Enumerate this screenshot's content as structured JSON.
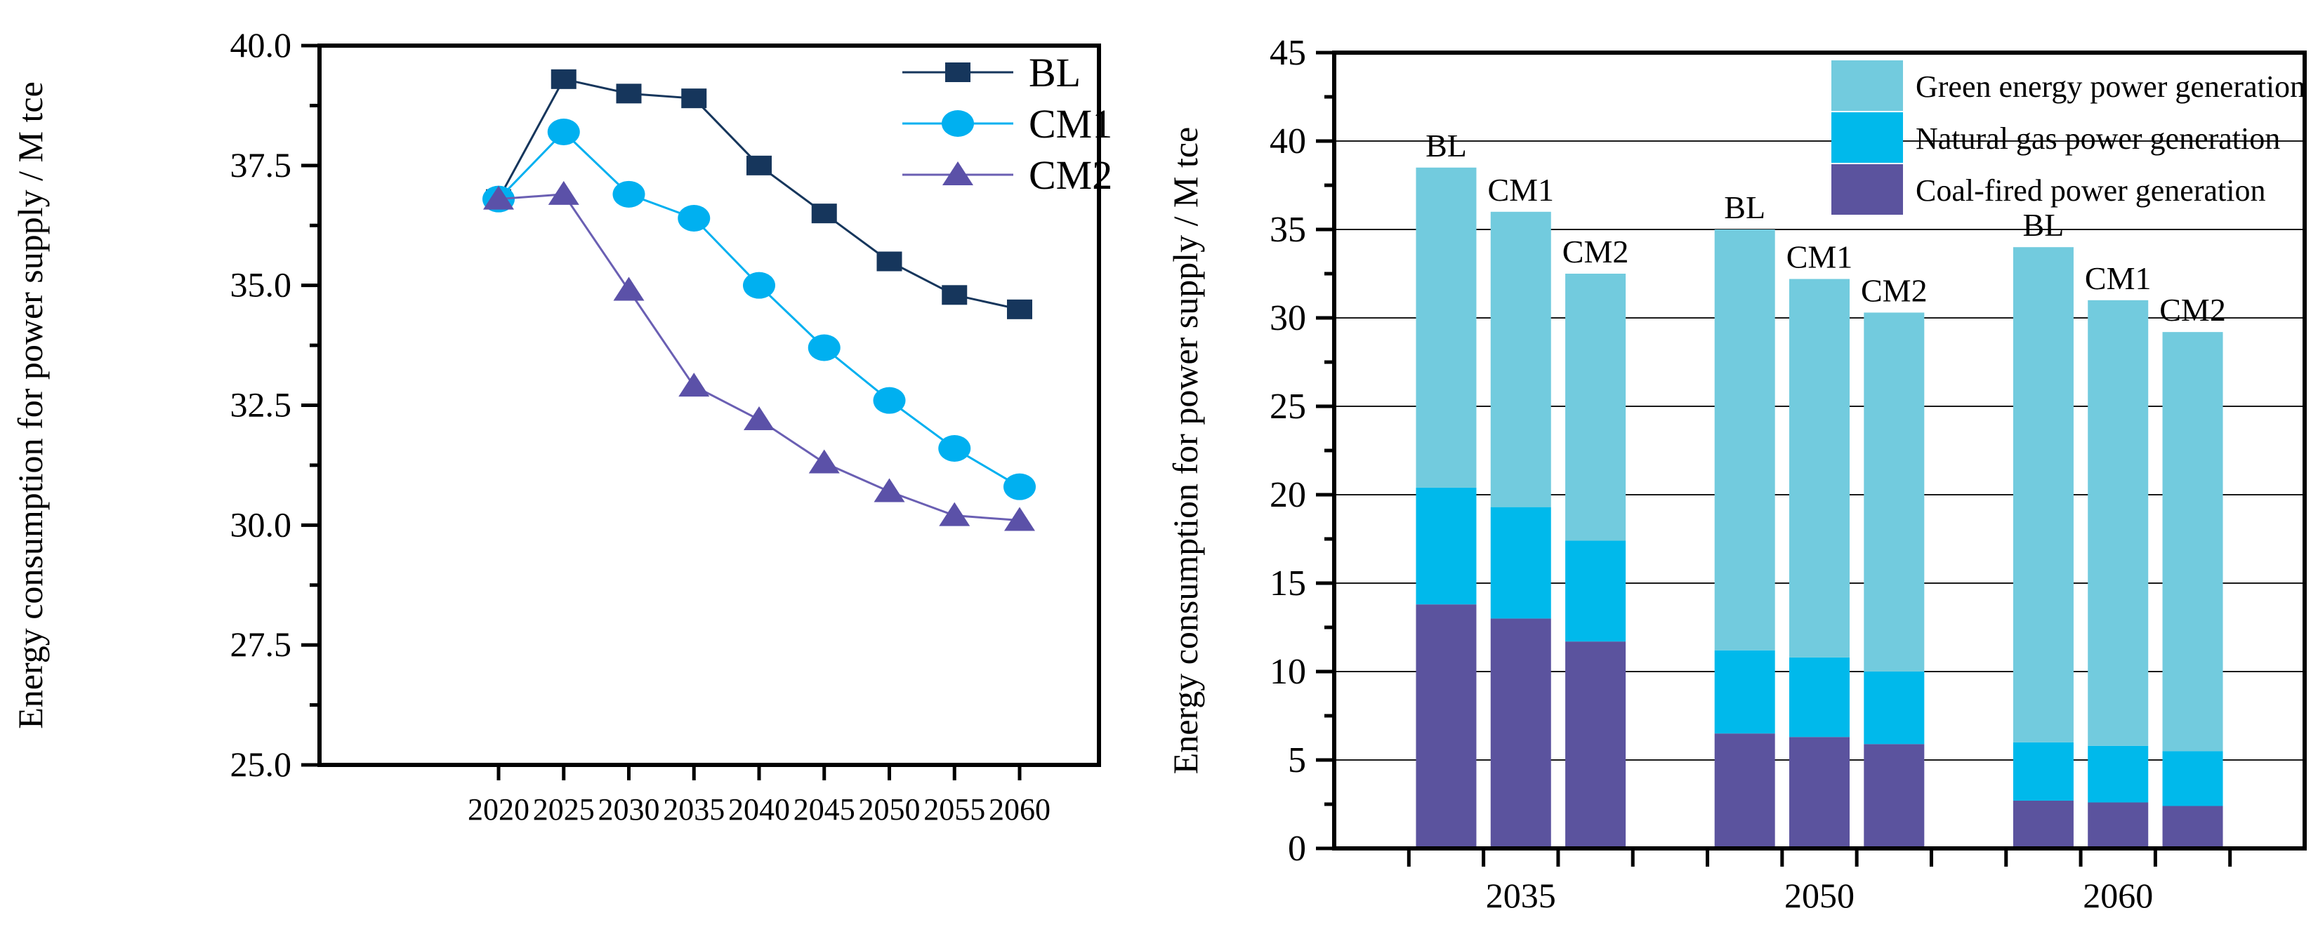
{
  "figure": {
    "background": "#ffffff",
    "axis_color": "#000000",
    "left_chart": {
      "ylabel": "Energy consumption for power supply / M tce",
      "ytick_labels": [
        "25.0",
        "27.5",
        "30.0",
        "32.5",
        "35.0",
        "37.5",
        "40.0"
      ],
      "xtick_labels": [
        "2020",
        "2025",
        "2030",
        "2035",
        "2040",
        "2045",
        "2050",
        "2055",
        "2060"
      ]
    },
    "right_chart": {
      "ylabel": "Energy consumption for power supply / M tce",
      "ytick_labels": [
        "0",
        "5",
        "10",
        "15",
        "20",
        "25",
        "30",
        "35",
        "40",
        "45"
      ],
      "xtick_labels": [
        "2035",
        "2050",
        "2060"
      ]
    }
  },
  "chart_data": [
    {
      "type": "line",
      "title": "",
      "xlabel": "",
      "ylabel": "Energy consumption for power supply / M tce",
      "x": [
        2020,
        2025,
        2030,
        2035,
        2040,
        2045,
        2050,
        2055,
        2060
      ],
      "ylim": [
        25.0,
        40.0
      ],
      "ytick_step": 2.5,
      "yminor_step": 1.25,
      "grid": false,
      "legend_position": "top-right",
      "series": [
        {
          "name": "BL",
          "marker": "square",
          "color": "#16365c",
          "line_color": "#16365c",
          "values": [
            36.8,
            39.3,
            39.0,
            38.9,
            37.5,
            36.5,
            35.5,
            34.8,
            34.5
          ]
        },
        {
          "name": "CM1",
          "marker": "circle",
          "color": "#00b0f0",
          "line_color": "#00b0f0",
          "values": [
            36.8,
            38.2,
            36.9,
            36.4,
            35.0,
            33.7,
            32.6,
            31.6,
            30.8
          ]
        },
        {
          "name": "CM2",
          "marker": "triangle",
          "color": "#5b51a8",
          "line_color": "#6a5fb3",
          "values": [
            36.8,
            36.9,
            34.9,
            32.9,
            32.2,
            31.3,
            30.7,
            30.2,
            30.1
          ]
        }
      ]
    },
    {
      "type": "bar",
      "stacked": true,
      "title": "",
      "xlabel": "",
      "ylabel": "Energy consumption for power supply / M tce",
      "groups": [
        "2035",
        "2050",
        "2060"
      ],
      "bars_per_group": [
        "BL",
        "CM1",
        "CM2"
      ],
      "ylim": [
        0,
        45
      ],
      "ytick_step": 5,
      "yminor_step": 2.5,
      "grid": true,
      "legend_position": "top-right",
      "legend_order_top_to_bottom": [
        "Green energy power generation",
        "Natural gas power generation",
        "Coal-fired power generation"
      ],
      "series": [
        {
          "name": "Coal-fired power generation",
          "color": "#5b539e",
          "values": [
            [
              13.8,
              13.0,
              11.7
            ],
            [
              6.5,
              6.3,
              5.9
            ],
            [
              2.7,
              2.6,
              2.4
            ]
          ]
        },
        {
          "name": "Natural gas power generation",
          "color": "#00b9eb",
          "values": [
            [
              6.6,
              6.3,
              5.7
            ],
            [
              4.7,
              4.5,
              4.1
            ],
            [
              3.3,
              3.2,
              3.1
            ]
          ]
        },
        {
          "name": "Green energy power generation",
          "color": "#72cbde",
          "values": [
            [
              18.1,
              16.7,
              15.1
            ],
            [
              23.8,
              21.4,
              20.3
            ],
            [
              28.0,
              25.2,
              23.7
            ]
          ]
        }
      ],
      "stack_totals": [
        [
          38.5,
          36.0,
          32.5
        ],
        [
          35.0,
          32.2,
          30.3
        ],
        [
          34.0,
          31.0,
          29.2
        ]
      ]
    }
  ]
}
